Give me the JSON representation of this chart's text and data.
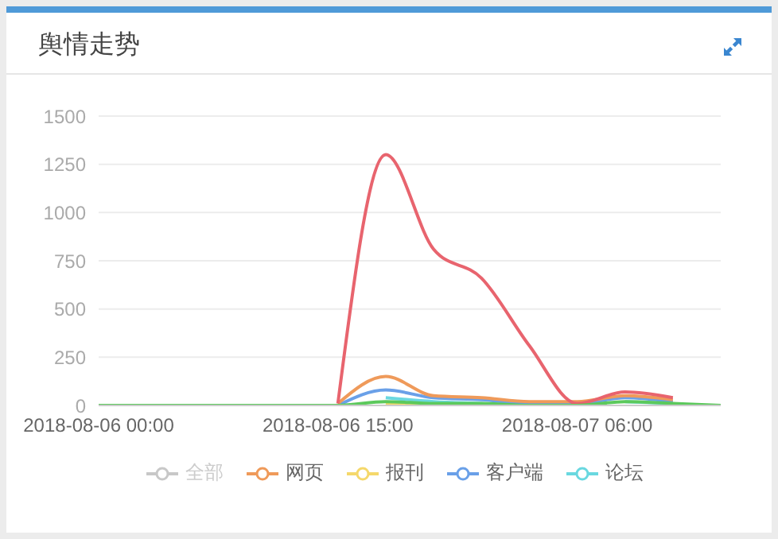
{
  "chart_data": {
    "type": "line",
    "title": "舆情走势",
    "categories": [
      "2018-08-06 00:00",
      null,
      null,
      null,
      null,
      "2018-08-06 15:00",
      null,
      null,
      null,
      null,
      "2018-08-07 06:00",
      null,
      null,
      null
    ],
    "series": [
      {
        "name": "全部",
        "color": "#c8c8c8",
        "values": [
          null,
          null,
          null,
          null,
          null,
          null,
          null,
          null,
          null,
          null,
          null,
          null,
          null,
          null
        ]
      },
      {
        "color": "#5cc95c",
        "values": [
          0,
          0,
          0,
          0,
          0,
          0,
          20,
          10,
          10,
          0,
          0,
          20,
          10,
          0
        ]
      },
      {
        "color": "#e8646e",
        "values": [
          null,
          null,
          null,
          null,
          null,
          10,
          1300,
          810,
          660,
          310,
          10,
          70,
          40,
          null
        ]
      },
      {
        "name": "网页",
        "color": "#ef9a5a",
        "values": [
          null,
          null,
          null,
          null,
          null,
          10,
          150,
          50,
          40,
          20,
          20,
          50,
          30,
          null
        ]
      },
      {
        "name": "报刊",
        "color": "#f5d86b",
        "values": [
          null,
          null,
          null,
          null,
          null,
          null,
          10,
          0,
          null,
          null,
          null,
          null,
          null,
          null
        ]
      },
      {
        "name": "客户端",
        "color": "#6aa0e8",
        "values": [
          null,
          null,
          null,
          null,
          null,
          0,
          80,
          40,
          30,
          10,
          10,
          40,
          20,
          null
        ]
      },
      {
        "name": "论坛",
        "color": "#6ad8e0",
        "values": [
          null,
          null,
          null,
          null,
          null,
          null,
          40,
          20,
          10,
          0,
          null,
          20,
          10,
          null
        ]
      }
    ],
    "ylim": [
      0,
      1500
    ],
    "yticks": [
      0,
      250,
      500,
      750,
      1000,
      1250,
      1500
    ],
    "grid": "y",
    "legend": "bottom",
    "marker": "none",
    "line_style": "solid"
  }
}
